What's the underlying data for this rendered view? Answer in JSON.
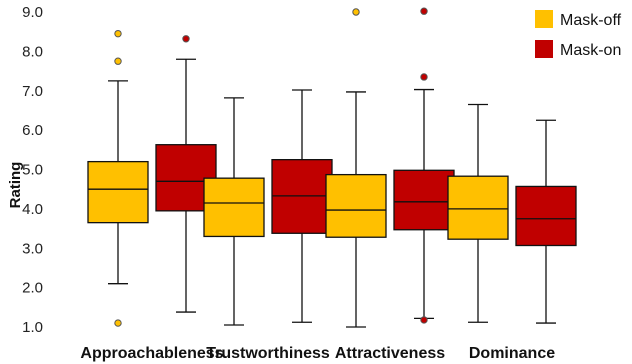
{
  "chart_data": {
    "type": "box",
    "ylabel": "Rating",
    "ylim": [
      1.0,
      9.0
    ],
    "yticks": [
      "1.0",
      "2.0",
      "3.0",
      "4.0",
      "5.0",
      "6.0",
      "7.0",
      "8.0",
      "9.0"
    ],
    "categories": [
      "Approachableness",
      "Trustworthiness",
      "Attractiveness",
      "Dominance"
    ],
    "legend_position": "top-right",
    "grid": false,
    "series": [
      {
        "name": "Mask-off",
        "color": "#FFC000",
        "boxes": [
          {
            "whisker_low": 2.1,
            "q1": 3.65,
            "median": 4.5,
            "q3": 5.2,
            "whisker_high": 7.25,
            "outliers": [
              1.1,
              7.75,
              8.45
            ]
          },
          {
            "whisker_low": 1.05,
            "q1": 3.3,
            "median": 4.15,
            "q3": 4.78,
            "whisker_high": 6.82,
            "outliers": []
          },
          {
            "whisker_low": 1.0,
            "q1": 3.28,
            "median": 3.97,
            "q3": 4.87,
            "whisker_high": 6.97,
            "outliers": [
              9.0
            ]
          },
          {
            "whisker_low": 1.12,
            "q1": 3.23,
            "median": 4.0,
            "q3": 4.83,
            "whisker_high": 6.65,
            "outliers": []
          }
        ]
      },
      {
        "name": "Mask-on",
        "color": "#C00000",
        "boxes": [
          {
            "whisker_low": 1.38,
            "q1": 3.95,
            "median": 4.7,
            "q3": 5.63,
            "whisker_high": 7.8,
            "outliers": [
              8.32
            ]
          },
          {
            "whisker_low": 1.12,
            "q1": 3.38,
            "median": 4.33,
            "q3": 5.25,
            "whisker_high": 7.02,
            "outliers": []
          },
          {
            "whisker_low": 1.22,
            "q1": 3.47,
            "median": 4.18,
            "q3": 4.98,
            "whisker_high": 7.03,
            "outliers": [
              1.18,
              7.35,
              9.02
            ]
          },
          {
            "whisker_low": 1.1,
            "q1": 3.07,
            "median": 3.75,
            "q3": 4.57,
            "whisker_high": 6.25,
            "outliers": []
          }
        ]
      }
    ]
  }
}
